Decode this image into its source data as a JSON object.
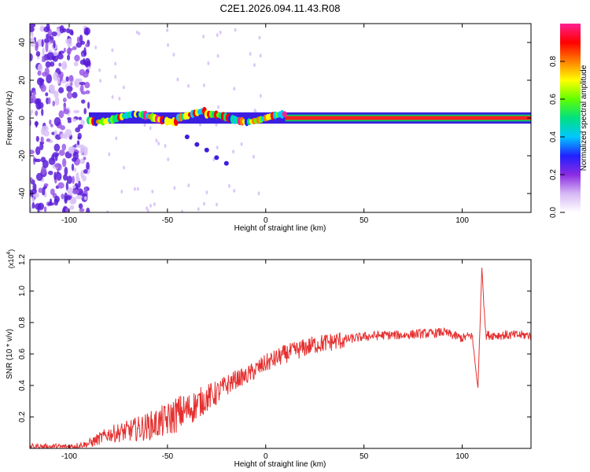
{
  "title": "C2E1.2026.094.11.43.R08",
  "colors": {
    "signal": "#e53030",
    "axis": "#000000"
  },
  "chart_data": [
    {
      "type": "heatmap",
      "xlabel": "Height of straight line (km)",
      "ylabel": "Frequency (Hz)",
      "xlim": [
        -120,
        135
      ],
      "ylim": [
        -50,
        50
      ],
      "x_ticks": [
        -100,
        -50,
        0,
        50,
        100
      ],
      "y_ticks": [
        -40,
        -20,
        0,
        20,
        40
      ],
      "colorbar": {
        "label": "Normalized spectral amplitude",
        "range": [
          0,
          1
        ],
        "ticks": [
          0.0,
          0.2,
          0.4,
          0.6,
          0.8
        ],
        "tick_labels": [
          "0.0",
          "0.2",
          "0.4",
          "0.6",
          "0.8"
        ],
        "stops": [
          "#ffffff",
          "#d6b8f5",
          "#8a2be2",
          "#2020ff",
          "#00c8ff",
          "#00e080",
          "#60ff00",
          "#ffff00",
          "#ff8000",
          "#ff0000",
          "#ff2090"
        ]
      },
      "ridge": {
        "x_start": -90,
        "x_end": 135,
        "freq": 0,
        "amplitude": 1.0
      },
      "tail": {
        "x": [
          -40,
          -35,
          -30,
          -25,
          -20
        ],
        "freq": [
          -10,
          -14,
          -17,
          -21,
          -24
        ]
      }
    },
    {
      "type": "line",
      "xlabel": "Height of straight line (km)",
      "ylabel": "SNR (10 * v/v)",
      "y_multiplier": "(x10",
      "y_multiplier_exp": "4",
      "y_multiplier_close": ")",
      "xlim": [
        -120,
        135
      ],
      "ylim": [
        0,
        1.2
      ],
      "x_ticks": [
        -100,
        -50,
        0,
        50,
        100
      ],
      "y_ticks": [
        0.2,
        0.4,
        0.6,
        0.8,
        1.0,
        1.2
      ],
      "y_tick_labels": [
        "0.2",
        "0.4",
        "0.6",
        "0.8",
        "1.0",
        "1.2"
      ],
      "series": [
        {
          "x": [
            -120,
            -100,
            -90,
            -85,
            -80,
            -70,
            -60,
            -50,
            -45,
            -40,
            -35,
            -30,
            -25,
            -20,
            -15,
            -10,
            -5,
            0,
            5,
            10,
            15,
            20,
            25,
            30,
            40,
            50,
            60,
            70,
            80,
            85,
            90,
            95,
            100,
            105,
            108,
            110,
            112,
            115,
            120,
            130,
            135
          ],
          "y": [
            0.01,
            0.01,
            0.03,
            0.06,
            0.09,
            0.11,
            0.14,
            0.18,
            0.22,
            0.24,
            0.28,
            0.32,
            0.35,
            0.4,
            0.44,
            0.46,
            0.5,
            0.54,
            0.57,
            0.6,
            0.62,
            0.64,
            0.66,
            0.67,
            0.69,
            0.71,
            0.72,
            0.72,
            0.73,
            0.73,
            0.74,
            0.72,
            0.7,
            0.72,
            0.38,
            1.15,
            0.72,
            0.72,
            0.72,
            0.72,
            0.72
          ]
        }
      ]
    }
  ]
}
